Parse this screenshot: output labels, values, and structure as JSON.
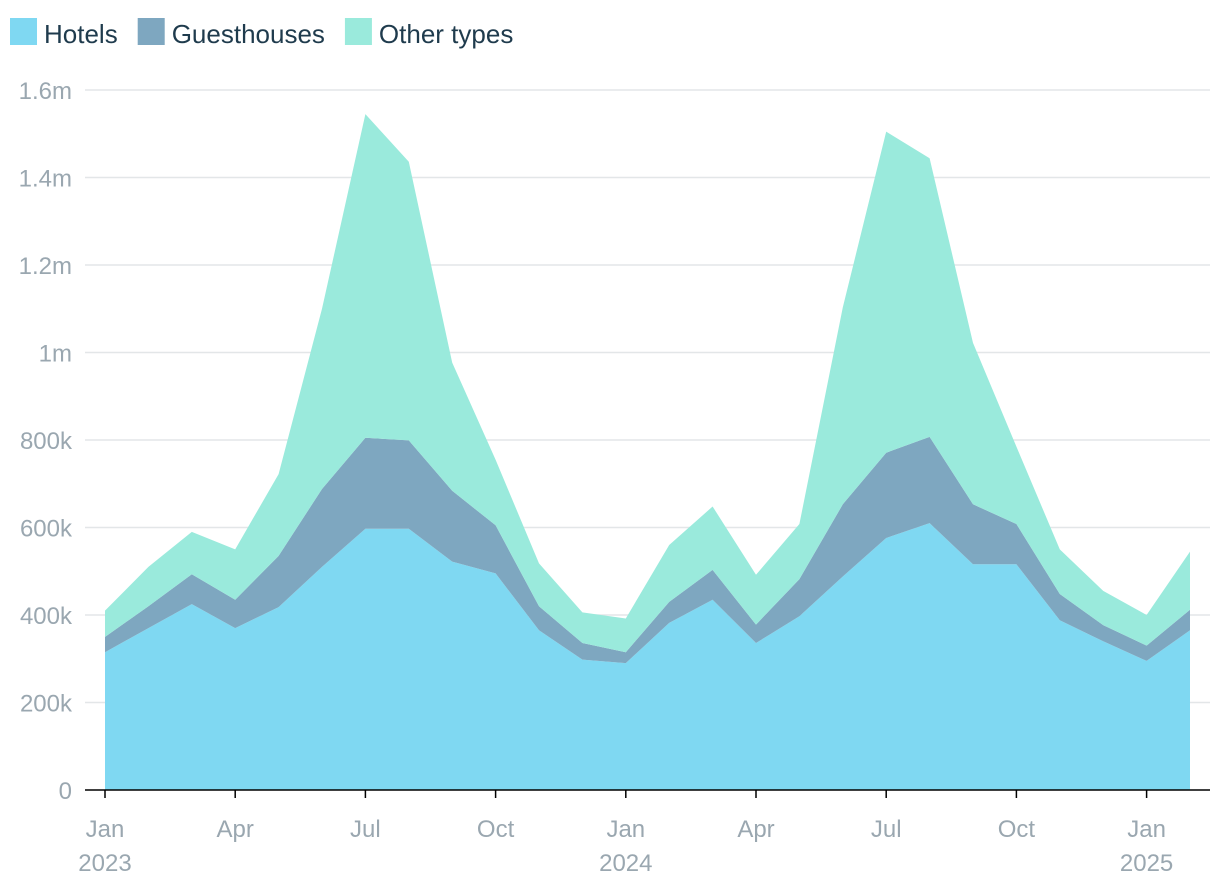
{
  "chart_data": {
    "type": "area",
    "stacked": true,
    "x": [
      "2023-01",
      "2023-02",
      "2023-03",
      "2023-04",
      "2023-05",
      "2023-06",
      "2023-07",
      "2023-08",
      "2023-09",
      "2023-10",
      "2023-11",
      "2023-12",
      "2024-01",
      "2024-02",
      "2024-03",
      "2024-04",
      "2024-05",
      "2024-06",
      "2024-07",
      "2024-08",
      "2024-09",
      "2024-10",
      "2024-11",
      "2024-12",
      "2025-01",
      "2025-02"
    ],
    "series": [
      {
        "name": "Hotels",
        "color": "#7fd8f2",
        "values": [
          315000,
          370000,
          425000,
          370000,
          418000,
          510000,
          597000,
          597000,
          522000,
          495000,
          365000,
          298000,
          290000,
          382000,
          435000,
          336000,
          397000,
          488000,
          576000,
          610000,
          516000,
          516000,
          388000,
          340000,
          295000,
          365000
        ]
      },
      {
        "name": "Guesthouses",
        "color": "#7ea7c0",
        "values": [
          35000,
          50000,
          68000,
          65000,
          117000,
          178000,
          208000,
          202000,
          162000,
          110000,
          55000,
          38000,
          25000,
          48000,
          68000,
          42000,
          85000,
          165000,
          195000,
          197000,
          137000,
          92000,
          60000,
          37000,
          35000,
          47000
        ]
      },
      {
        "name": "Other types",
        "color": "#9aeadc",
        "values": [
          60000,
          90000,
          97000,
          115000,
          187000,
          412000,
          740000,
          637000,
          293000,
          150000,
          98000,
          70000,
          77000,
          130000,
          145000,
          114000,
          126000,
          450000,
          734000,
          637000,
          369000,
          177000,
          102000,
          78000,
          70000,
          133000
        ]
      }
    ],
    "ylim": [
      0,
      1600000
    ],
    "y_ticks": [
      {
        "value": 0,
        "label": "0"
      },
      {
        "value": 200000,
        "label": "200k"
      },
      {
        "value": 400000,
        "label": "400k"
      },
      {
        "value": 600000,
        "label": "600k"
      },
      {
        "value": 800000,
        "label": "800k"
      },
      {
        "value": 1000000,
        "label": "1m"
      },
      {
        "value": 1200000,
        "label": "1.2m"
      },
      {
        "value": 1400000,
        "label": "1.4m"
      },
      {
        "value": 1600000,
        "label": "1.6m"
      }
    ],
    "x_ticks": [
      {
        "index": 0,
        "label": "Jan",
        "sublabel": "2023"
      },
      {
        "index": 3,
        "label": "Apr",
        "sublabel": ""
      },
      {
        "index": 6,
        "label": "Jul",
        "sublabel": ""
      },
      {
        "index": 9,
        "label": "Oct",
        "sublabel": ""
      },
      {
        "index": 12,
        "label": "Jan",
        "sublabel": "2024"
      },
      {
        "index": 15,
        "label": "Apr",
        "sublabel": ""
      },
      {
        "index": 18,
        "label": "Jul",
        "sublabel": ""
      },
      {
        "index": 21,
        "label": "Oct",
        "sublabel": ""
      },
      {
        "index": 24,
        "label": "Jan",
        "sublabel": "2025"
      }
    ],
    "grid": true,
    "legend_position": "top-left",
    "title": "",
    "xlabel": "",
    "ylabel": ""
  }
}
